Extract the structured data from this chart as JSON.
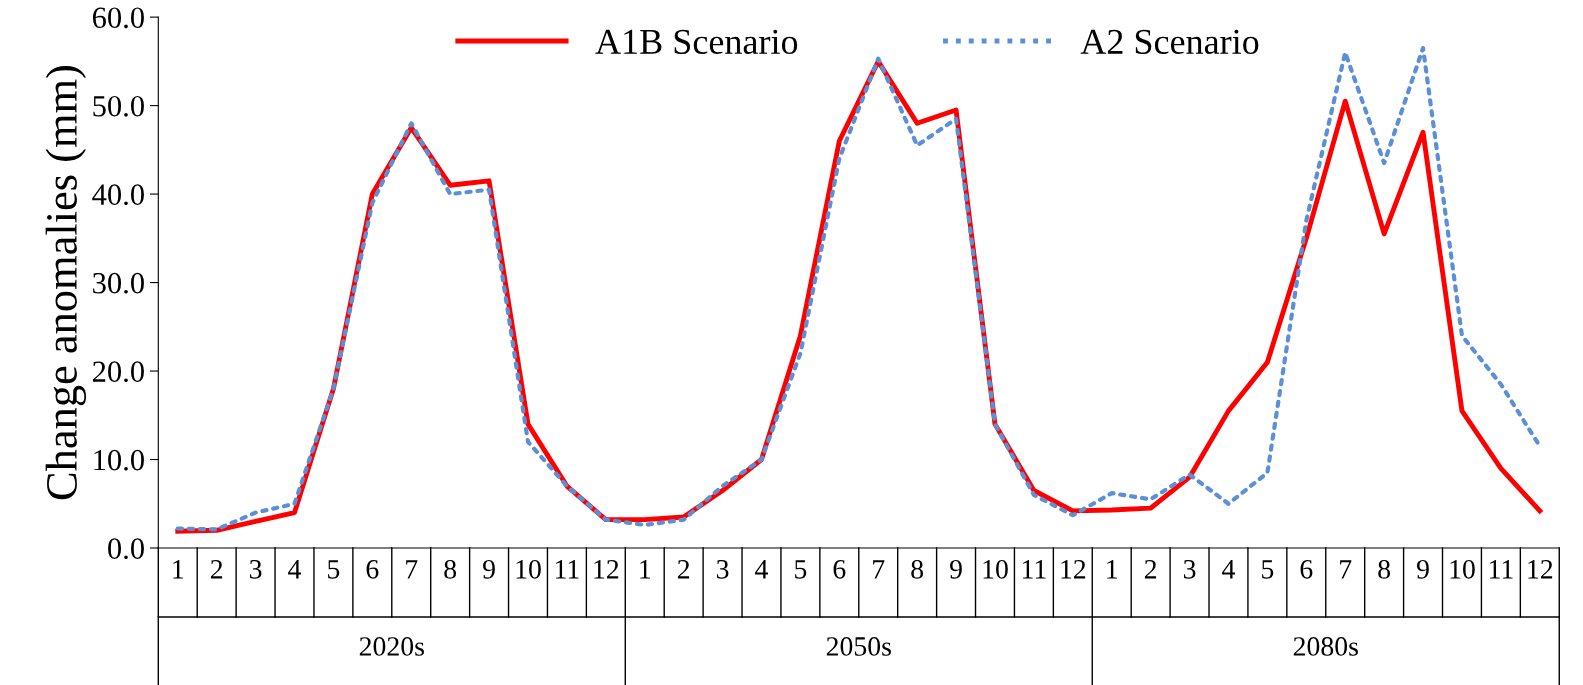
{
  "chart_data": {
    "type": "line",
    "ylabel": "Change anomalies (mm)",
    "categories": [
      "1",
      "2",
      "3",
      "4",
      "5",
      "6",
      "7",
      "8",
      "9",
      "10",
      "11",
      "12",
      "1",
      "2",
      "3",
      "4",
      "5",
      "6",
      "7",
      "8",
      "9",
      "10",
      "11",
      "12",
      "1",
      "2",
      "3",
      "4",
      "5",
      "6",
      "7",
      "8",
      "9",
      "10",
      "11",
      "12"
    ],
    "annotations": [
      "2020s",
      "2050s",
      "2080s"
    ],
    "series": [
      {
        "name": "A1B Scenario",
        "color": "#ff0000",
        "line_style": "solid",
        "values": [
          1.9,
          2.0,
          3.0,
          4.0,
          18,
          40,
          47.5,
          41,
          41.5,
          14,
          7,
          3.2,
          3.2,
          3.5,
          6.5,
          10,
          24,
          46,
          55,
          48,
          49.5,
          14,
          6.5,
          4.2,
          4.3,
          4.5,
          8,
          15.5,
          21,
          35,
          50.5,
          35.5,
          47,
          15.5,
          9,
          4.2
        ]
      },
      {
        "name": "A2 Scenario",
        "color": "#5b8fd6",
        "line_style": "dotted",
        "values": [
          2.2,
          2.1,
          4.0,
          5.0,
          18,
          39,
          48,
          40,
          40.5,
          12,
          7,
          3.2,
          2.6,
          3.2,
          7.0,
          10,
          22,
          44,
          55.3,
          45.5,
          48.5,
          14,
          6,
          3.7,
          6.2,
          5.5,
          8.3,
          5.0,
          8.5,
          37,
          56,
          43.5,
          56.5,
          24,
          18.5,
          11.5
        ]
      }
    ],
    "ylim": [
      0,
      60
    ],
    "yticks": [
      {
        "value": 0,
        "label": "0.0"
      },
      {
        "value": 10,
        "label": "10.0"
      },
      {
        "value": 20,
        "label": "20.0"
      },
      {
        "value": 30,
        "label": "30.0"
      },
      {
        "value": 40,
        "label": "40.0"
      },
      {
        "value": 50,
        "label": "50.0"
      },
      {
        "value": 60,
        "label": "60.0"
      }
    ],
    "grid": false,
    "legend": "top",
    "marker": "none"
  }
}
